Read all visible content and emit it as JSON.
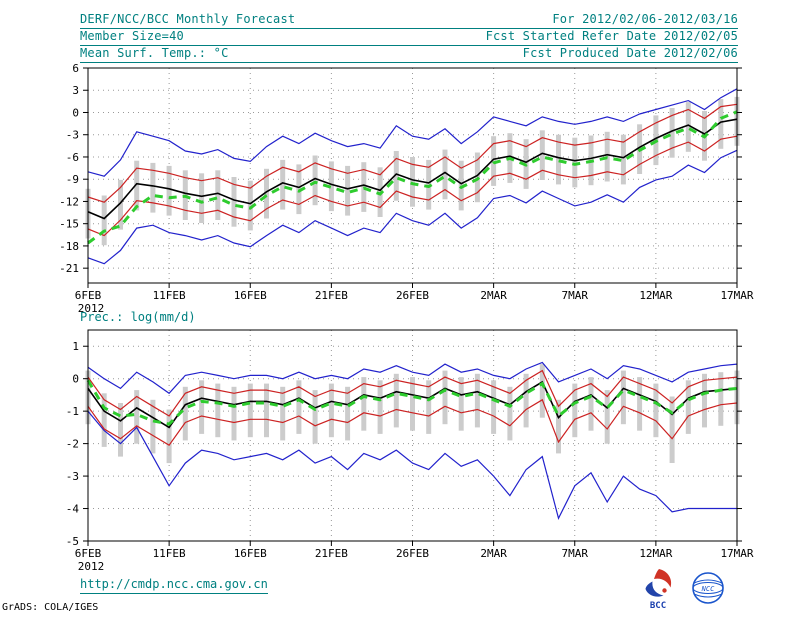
{
  "header": {
    "title": "DERF/NCC/BCC Monthly Forecast",
    "for_range": "For 2012/02/06-2012/03/16",
    "member_size": "Member Size=40",
    "fcst_started": "Fcst Started Refer Date 2012/02/05",
    "temp_title": "Mean Surf. Temp.: °C",
    "fcst_produced": "Fcst Produced Date 2012/02/06"
  },
  "footer": {
    "url": "http://cmdp.ncc.cma.gov.cn",
    "grads_credit": "GrADS: COLA/IGES",
    "bcc_label": "BCC",
    "ncc_label": "NCC"
  },
  "colors": {
    "accent_teal": "#008080",
    "line_blue": "#2222cc",
    "line_red": "#cc2222",
    "line_black": "#000000",
    "obs_green": "#2ecc2e",
    "bar_gray": "#cccccc"
  },
  "chart_data": [
    {
      "type": "line",
      "title": "Mean Surf. Temp.: °C",
      "title_in_plot": false,
      "grid": "dotted",
      "legend": "none",
      "x_max": 40,
      "x_ticks": [
        0,
        5,
        10,
        15,
        20,
        25,
        30,
        35,
        40
      ],
      "x_tick_labels": [
        "6FEB",
        "11FEB",
        "16FEB",
        "21FEB",
        "26FEB",
        "2MAR",
        "7MAR",
        "12MAR",
        "17MAR"
      ],
      "x_sub_label": "2012",
      "ylim": [
        -23,
        6
      ],
      "y_ticks": [
        6,
        3,
        0,
        -3,
        -6,
        -9,
        -12,
        -15,
        -18,
        -21
      ],
      "bars": {
        "color": "#cccccc",
        "low": [
          -17.0,
          -17.9,
          -15.8,
          -13.2,
          -13.5,
          -13.9,
          -14.5,
          -14.9,
          -14.5,
          -15.4,
          -15.9,
          -14.3,
          -13.1,
          -13.7,
          -12.5,
          -13.3,
          -13.9,
          -13.4,
          -14.1,
          -11.9,
          -12.7,
          -13.1,
          -11.7,
          -13.2,
          -12.1,
          -9.9,
          -9.5,
          -10.3,
          -9.1,
          -9.7,
          -10.1,
          -9.8,
          -9.3,
          -9.7,
          -8.3,
          -7.1,
          -6.1,
          -5.3,
          -6.5,
          -4.9,
          -4.5
        ],
        "high": [
          -10.3,
          -11.2,
          -9.1,
          -6.5,
          -6.8,
          -7.2,
          -7.8,
          -8.2,
          -7.8,
          -8.7,
          -9.2,
          -7.6,
          -6.4,
          -7.0,
          -5.8,
          -6.6,
          -7.2,
          -6.7,
          -7.4,
          -5.2,
          -6.0,
          -6.4,
          -5.0,
          -6.5,
          -5.4,
          -3.2,
          -2.8,
          -3.6,
          -2.4,
          -3.0,
          -3.4,
          -3.1,
          -2.6,
          -3.0,
          -1.6,
          -0.4,
          0.6,
          1.4,
          0.2,
          1.8,
          2.1
        ]
      },
      "series": [
        {
          "name": "ensemble-min",
          "color": "#2222cc",
          "width": 1.2,
          "dash": "",
          "values": [
            -19.6,
            -20.4,
            -18.6,
            -15.6,
            -15.2,
            -16.2,
            -16.6,
            -17.2,
            -16.6,
            -17.6,
            -18.1,
            -16.6,
            -15.2,
            -16.2,
            -14.6,
            -15.6,
            -16.6,
            -15.6,
            -16.2,
            -13.6,
            -14.6,
            -15.2,
            -13.6,
            -15.6,
            -14.2,
            -11.6,
            -11.2,
            -12.2,
            -10.6,
            -11.6,
            -12.6,
            -12.1,
            -11.1,
            -12.1,
            -10.1,
            -9.1,
            -8.6,
            -7.1,
            -8.1,
            -6.1,
            -5.1
          ]
        },
        {
          "name": "ensemble-max",
          "color": "#2222cc",
          "width": 1.2,
          "dash": "",
          "values": [
            -8.0,
            -8.6,
            -6.4,
            -2.6,
            -3.2,
            -3.8,
            -5.2,
            -5.6,
            -5.0,
            -6.2,
            -6.6,
            -4.6,
            -3.2,
            -4.2,
            -2.8,
            -3.8,
            -4.6,
            -4.2,
            -4.8,
            -1.8,
            -3.2,
            -3.6,
            -2.2,
            -4.2,
            -2.6,
            -0.6,
            -1.2,
            -1.8,
            -0.6,
            -1.2,
            -1.6,
            -1.2,
            -0.6,
            -1.2,
            -0.2,
            0.4,
            1.0,
            1.6,
            0.4,
            2.0,
            3.2
          ]
        },
        {
          "name": "lower-quartile",
          "color": "#cc2222",
          "width": 1.2,
          "dash": "",
          "values": [
            -15.7,
            -16.6,
            -14.5,
            -11.9,
            -12.2,
            -12.6,
            -13.2,
            -13.6,
            -13.2,
            -14.1,
            -14.6,
            -13.0,
            -11.8,
            -12.4,
            -11.2,
            -12.0,
            -12.6,
            -12.1,
            -12.8,
            -10.6,
            -11.4,
            -11.8,
            -10.4,
            -11.9,
            -10.8,
            -8.6,
            -8.2,
            -9.0,
            -7.8,
            -8.4,
            -8.8,
            -8.5,
            -8.0,
            -8.4,
            -7.0,
            -5.8,
            -4.8,
            -4.0,
            -5.2,
            -3.6,
            -3.2
          ]
        },
        {
          "name": "upper-quartile",
          "color": "#cc2222",
          "width": 1.2,
          "dash": "",
          "values": [
            -11.4,
            -12.1,
            -10.1,
            -7.5,
            -7.8,
            -8.2,
            -8.8,
            -9.2,
            -8.8,
            -9.7,
            -10.2,
            -8.6,
            -7.4,
            -8.0,
            -6.8,
            -7.6,
            -8.2,
            -7.7,
            -8.4,
            -6.2,
            -7.0,
            -7.4,
            -6.0,
            -7.5,
            -6.4,
            -4.2,
            -3.8,
            -4.6,
            -3.4,
            -4.0,
            -4.4,
            -4.1,
            -3.6,
            -4.0,
            -2.6,
            -1.4,
            -0.4,
            0.4,
            -0.8,
            0.8,
            1.1
          ]
        },
        {
          "name": "ensemble-mean",
          "color": "#000000",
          "width": 1.6,
          "dash": "",
          "values": [
            -13.4,
            -14.3,
            -12.2,
            -9.6,
            -9.9,
            -10.3,
            -10.9,
            -11.3,
            -10.9,
            -11.8,
            -12.3,
            -10.7,
            -9.5,
            -10.1,
            -8.9,
            -9.7,
            -10.3,
            -9.8,
            -10.5,
            -8.3,
            -9.1,
            -9.5,
            -8.1,
            -9.6,
            -8.5,
            -6.3,
            -5.9,
            -6.7,
            -5.5,
            -6.1,
            -6.5,
            -6.2,
            -5.7,
            -6.1,
            -4.7,
            -3.5,
            -2.5,
            -1.7,
            -2.9,
            -1.3,
            -0.9
          ]
        },
        {
          "name": "observation",
          "color": "#2ecc2e",
          "width": 3,
          "dash": "8,6",
          "values": [
            -17.6,
            -16.0,
            -15.3,
            -12.7,
            -11.2,
            -11.5,
            -11.3,
            -12.1,
            -11.5,
            -12.5,
            -12.9,
            -11.2,
            -10.0,
            -10.6,
            -9.4,
            -10.1,
            -10.8,
            -10.2,
            -11.0,
            -8.8,
            -9.6,
            -10.0,
            -8.6,
            -10.1,
            -9.0,
            -6.8,
            -6.2,
            -7.1,
            -6.0,
            -6.5,
            -7.0,
            -6.6,
            -6.1,
            -6.5,
            -5.1,
            -3.9,
            -2.9,
            -2.1,
            -3.3,
            -0.8,
            0.1
          ]
        }
      ]
    },
    {
      "type": "line",
      "title": "Prec.: log(mm/d)",
      "title_in_plot": true,
      "grid": "dotted",
      "legend": "none",
      "x_max": 40,
      "x_ticks": [
        0,
        5,
        10,
        15,
        20,
        25,
        30,
        35,
        40
      ],
      "x_tick_labels": [
        "6FEB",
        "11FEB",
        "16FEB",
        "21FEB",
        "26FEB",
        "2MAR",
        "7MAR",
        "12MAR",
        "17MAR"
      ],
      "x_sub_label": "2012",
      "ylim": [
        -5,
        1.5
      ],
      "y_ticks": [
        1,
        0,
        -1,
        -2,
        -3,
        -4,
        -5
      ],
      "bars": {
        "color": "#cccccc",
        "low": [
          -1.4,
          -2.1,
          -2.4,
          -2.0,
          -2.3,
          -2.6,
          -1.9,
          -1.7,
          -1.8,
          -1.9,
          -1.8,
          -1.8,
          -1.9,
          -1.7,
          -2.0,
          -1.8,
          -1.9,
          -1.6,
          -1.7,
          -1.5,
          -1.6,
          -1.7,
          -1.4,
          -1.6,
          -1.5,
          -1.7,
          -1.9,
          -1.5,
          -1.2,
          -2.3,
          -1.8,
          -1.6,
          -2.0,
          -1.4,
          -1.6,
          -1.8,
          -2.6,
          -1.7,
          -1.5,
          -1.45,
          -1.4
        ],
        "high": [
          0.25,
          -0.45,
          -0.75,
          -0.35,
          -0.65,
          -0.95,
          -0.25,
          -0.05,
          -0.15,
          -0.25,
          -0.15,
          -0.15,
          -0.25,
          -0.05,
          -0.35,
          -0.15,
          -0.25,
          0.05,
          -0.05,
          0.15,
          0.05,
          -0.05,
          0.25,
          0.05,
          0.15,
          -0.05,
          -0.25,
          0.15,
          0.45,
          -0.65,
          -0.15,
          0.05,
          -0.35,
          0.25,
          0.05,
          -0.15,
          -0.55,
          -0.05,
          0.15,
          0.2,
          0.25
        ]
      },
      "series": [
        {
          "name": "ensemble-min",
          "color": "#2222cc",
          "width": 1.2,
          "dash": "",
          "values": [
            -1.0,
            -1.6,
            -2.0,
            -1.5,
            -2.4,
            -3.3,
            -2.6,
            -2.2,
            -2.3,
            -2.5,
            -2.4,
            -2.3,
            -2.5,
            -2.2,
            -2.6,
            -2.4,
            -2.8,
            -2.3,
            -2.5,
            -2.2,
            -2.6,
            -2.8,
            -2.3,
            -2.7,
            -2.5,
            -3.0,
            -3.6,
            -2.8,
            -2.4,
            -4.3,
            -3.3,
            -2.9,
            -3.8,
            -3.0,
            -3.4,
            -3.6,
            -4.1,
            -4.0,
            -4.0,
            -4.0,
            -4.0
          ]
        },
        {
          "name": "ensemble-max",
          "color": "#2222cc",
          "width": 1.2,
          "dash": "",
          "values": [
            0.35,
            0.0,
            -0.3,
            0.2,
            -0.1,
            -0.45,
            0.1,
            0.2,
            0.1,
            0.0,
            0.1,
            0.1,
            0.0,
            0.2,
            0.0,
            0.1,
            0.0,
            0.3,
            0.2,
            0.4,
            0.2,
            0.1,
            0.45,
            0.2,
            0.3,
            0.1,
            0.0,
            0.3,
            0.5,
            -0.1,
            0.1,
            0.3,
            0.0,
            0.4,
            0.3,
            0.1,
            -0.1,
            0.2,
            0.3,
            0.4,
            0.45
          ]
        },
        {
          "name": "lower-quartile",
          "color": "#cc2222",
          "width": 1.2,
          "dash": "",
          "values": [
            -0.85,
            -1.55,
            -1.85,
            -1.45,
            -1.75,
            -2.05,
            -1.35,
            -1.15,
            -1.25,
            -1.35,
            -1.25,
            -1.25,
            -1.35,
            -1.15,
            -1.45,
            -1.25,
            -1.35,
            -1.05,
            -1.15,
            -0.95,
            -1.05,
            -1.15,
            -0.85,
            -1.05,
            -0.95,
            -1.15,
            -1.45,
            -0.95,
            -0.65,
            -1.95,
            -1.25,
            -1.05,
            -1.55,
            -0.85,
            -1.05,
            -1.3,
            -1.85,
            -1.15,
            -0.95,
            -0.8,
            -0.75
          ]
        },
        {
          "name": "upper-quartile",
          "color": "#cc2222",
          "width": 1.2,
          "dash": "",
          "values": [
            0.05,
            -0.65,
            -0.95,
            -0.55,
            -0.85,
            -1.15,
            -0.45,
            -0.25,
            -0.35,
            -0.45,
            -0.35,
            -0.35,
            -0.45,
            -0.25,
            -0.55,
            -0.35,
            -0.45,
            -0.15,
            -0.25,
            -0.05,
            -0.15,
            -0.25,
            0.05,
            -0.15,
            -0.05,
            -0.25,
            -0.45,
            -0.05,
            0.25,
            -0.85,
            -0.35,
            -0.15,
            -0.55,
            0.05,
            -0.15,
            -0.35,
            -0.75,
            -0.25,
            -0.05,
            0.0,
            0.05
          ]
        },
        {
          "name": "ensemble-mean",
          "color": "#000000",
          "width": 1.6,
          "dash": "",
          "values": [
            -0.3,
            -1.0,
            -1.3,
            -0.9,
            -1.2,
            -1.5,
            -0.8,
            -0.6,
            -0.7,
            -0.8,
            -0.7,
            -0.7,
            -0.8,
            -0.6,
            -0.9,
            -0.7,
            -0.8,
            -0.5,
            -0.6,
            -0.4,
            -0.5,
            -0.6,
            -0.3,
            -0.5,
            -0.4,
            -0.6,
            -0.8,
            -0.4,
            -0.1,
            -1.2,
            -0.7,
            -0.5,
            -0.9,
            -0.3,
            -0.5,
            -0.7,
            -1.1,
            -0.6,
            -0.4,
            -0.35,
            -0.3
          ]
        },
        {
          "name": "observation",
          "color": "#2ecc2e",
          "width": 3,
          "dash": "8,6",
          "values": [
            -0.05,
            -0.9,
            -1.15,
            -1.1,
            -1.3,
            -1.4,
            -0.9,
            -0.7,
            -0.75,
            -0.85,
            -0.75,
            -0.75,
            -0.85,
            -0.65,
            -0.95,
            -0.75,
            -0.85,
            -0.55,
            -0.65,
            -0.45,
            -0.55,
            -0.65,
            -0.35,
            -0.55,
            -0.45,
            -0.65,
            -0.85,
            -0.45,
            -0.15,
            -1.15,
            -0.75,
            -0.55,
            -0.9,
            -0.35,
            -0.55,
            -0.75,
            -1.05,
            -0.65,
            -0.45,
            -0.35,
            -0.3
          ]
        }
      ]
    }
  ]
}
